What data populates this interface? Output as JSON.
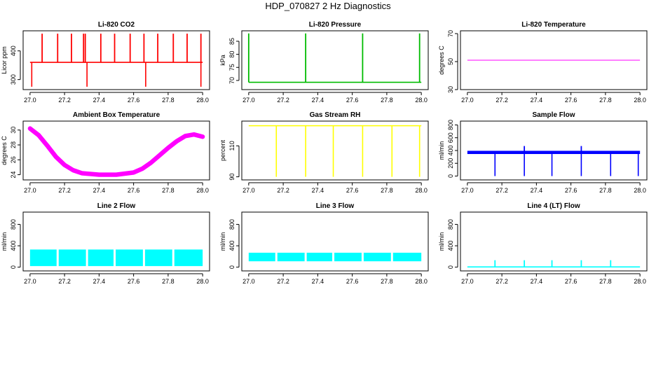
{
  "page": {
    "title": "HDP_070827  2 Hz Diagnostics"
  },
  "chart_data": [
    {
      "id": "co2",
      "type": "line",
      "title": "Li-820 CO2",
      "ylabel": "Licor ppm",
      "color": "#ff0000",
      "xlim": [
        27.0,
        28.0
      ],
      "xticks": [
        27.0,
        27.2,
        27.4,
        27.6,
        27.8,
        28.0
      ],
      "ylim": [
        265,
        470
      ],
      "yticks": [
        300,
        400
      ],
      "baseline": 360,
      "spikes_up": [
        27.07,
        27.16,
        27.24,
        27.31,
        27.32,
        27.41,
        27.49,
        27.58,
        27.66,
        27.74,
        27.83,
        27.91,
        27.99
      ],
      "spikes_up_peak": 460,
      "spikes_down": [
        27.01,
        27.33,
        27.67,
        27.99
      ],
      "spikes_down_min": 275
    },
    {
      "id": "pressure",
      "type": "line",
      "title": "Li-820 Pressure",
      "ylabel": "kPa",
      "color": "#00bb00",
      "xlim": [
        27.0,
        28.0
      ],
      "xticks": [
        27.0,
        27.2,
        27.4,
        27.6,
        27.8,
        28.0
      ],
      "ylim": [
        66.5,
        89
      ],
      "yticks": [
        70,
        75,
        80,
        85
      ],
      "baseline": 69.3,
      "spikes_up": [
        27.0,
        27.33,
        27.66,
        27.99
      ],
      "spikes_up_peak": 88
    },
    {
      "id": "licor_temp",
      "type": "line",
      "title": "Li-820 Temperature",
      "ylabel": "degrees C",
      "color": "#ff00ff",
      "xlim": [
        27.0,
        28.0
      ],
      "xticks": [
        27.0,
        27.2,
        27.4,
        27.6,
        27.8,
        28.0
      ],
      "ylim": [
        30,
        72
      ],
      "yticks": [
        30,
        50,
        70
      ],
      "x": [
        27.0,
        28.0
      ],
      "y": [
        51,
        51
      ]
    },
    {
      "id": "ambient_temp",
      "type": "line",
      "title": "Ambient Box Temperature",
      "ylabel": "degrees C",
      "color": "#ff00ff",
      "xlim": [
        27.0,
        28.0
      ],
      "xticks": [
        27.0,
        27.2,
        27.4,
        27.6,
        27.8,
        28.0
      ],
      "ylim": [
        23.3,
        31.2
      ],
      "yticks": [
        24,
        26,
        28,
        30
      ],
      "x": [
        27.0,
        27.05,
        27.1,
        27.15,
        27.2,
        27.25,
        27.3,
        27.4,
        27.5,
        27.6,
        27.65,
        27.7,
        27.75,
        27.8,
        27.85,
        27.9,
        27.95,
        28.0
      ],
      "y": [
        30.2,
        29.3,
        27.9,
        26.4,
        25.3,
        24.6,
        24.2,
        24.0,
        24.0,
        24.3,
        24.8,
        25.6,
        26.6,
        27.6,
        28.5,
        29.2,
        29.4,
        29.1
      ],
      "band": 0.6
    },
    {
      "id": "rh",
      "type": "line",
      "title": "Gas Stream RH",
      "ylabel": "percent",
      "color": "#ffff00",
      "xlim": [
        27.0,
        28.0
      ],
      "xticks": [
        27.0,
        27.2,
        27.4,
        27.6,
        27.8,
        28.0
      ],
      "ylim": [
        88,
        126
      ],
      "yticks": [
        90,
        110
      ],
      "baseline": 123,
      "spikes_down": [
        27.16,
        27.33,
        27.49,
        27.66,
        27.83,
        27.99
      ],
      "spikes_down_min": 90
    },
    {
      "id": "sample_flow",
      "type": "line",
      "title": "Sample Flow",
      "ylabel": "ml/min",
      "color": "#0000ff",
      "xlim": [
        27.0,
        28.0
      ],
      "xticks": [
        27.0,
        27.2,
        27.4,
        27.6,
        27.8,
        28.0
      ],
      "ylim": [
        -60,
        860
      ],
      "yticks": [
        0,
        200,
        400,
        600,
        800
      ],
      "baseline": 370,
      "band": 50,
      "spikes_down": [
        27.16,
        27.33,
        27.49,
        27.66,
        27.83,
        27.99
      ],
      "spikes_down_min": 0,
      "spikes_up": [
        27.33,
        27.66
      ],
      "spikes_up_peak": 470
    },
    {
      "id": "line2",
      "type": "line",
      "title": "Line 2 Flow",
      "ylabel": "ml/min",
      "color": "#00ffff",
      "xlim": [
        27.0,
        28.0
      ],
      "xticks": [
        27.0,
        27.2,
        27.4,
        27.6,
        27.8,
        28.0
      ],
      "ylim": [
        -70,
        1030
      ],
      "yticks": [
        0,
        400,
        800
      ],
      "band_lo": 20,
      "band_hi": 330,
      "gaps": [
        27.16,
        27.33,
        27.49,
        27.66,
        27.83
      ]
    },
    {
      "id": "line3",
      "type": "line",
      "title": "Line 3 Flow",
      "ylabel": "ml/min",
      "color": "#00ffff",
      "xlim": [
        27.0,
        28.0
      ],
      "xticks": [
        27.0,
        27.2,
        27.4,
        27.6,
        27.8,
        28.0
      ],
      "ylim": [
        -70,
        1030
      ],
      "yticks": [
        0,
        400,
        800
      ],
      "band_lo": 110,
      "band_hi": 270,
      "gaps": [
        27.16,
        27.33,
        27.49,
        27.66,
        27.83
      ]
    },
    {
      "id": "line4",
      "type": "line",
      "title": "Line 4 (LT) Flow",
      "ylabel": "ml/min",
      "color": "#00ffff",
      "xlim": [
        27.0,
        28.0
      ],
      "xticks": [
        27.0,
        27.2,
        27.4,
        27.6,
        27.8,
        28.0
      ],
      "ylim": [
        -70,
        1030
      ],
      "yticks": [
        0,
        400,
        800
      ],
      "baseline": 5,
      "spikes_up": [
        27.16,
        27.33,
        27.49,
        27.66,
        27.83
      ],
      "spikes_up_peak": 130
    }
  ]
}
